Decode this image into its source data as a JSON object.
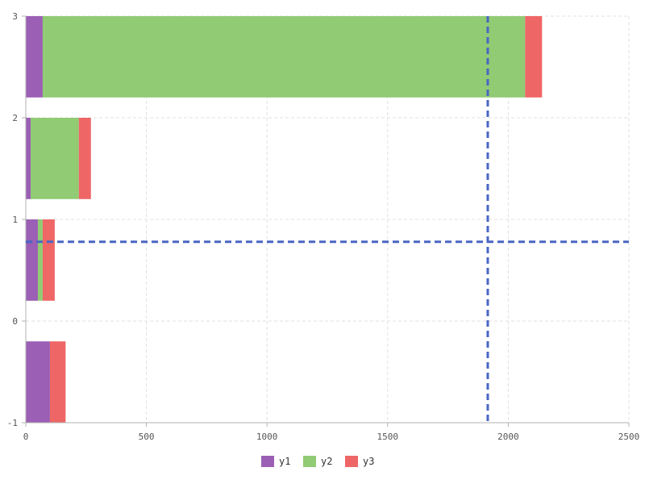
{
  "chart_data": {
    "type": "bar",
    "orientation": "horizontal",
    "stacked": true,
    "categories": [
      -0.6,
      0.6,
      1.6,
      2.6
    ],
    "series": [
      {
        "name": "y1",
        "color": "#9b5fb5",
        "values": [
          100,
          50,
          20,
          70
        ]
      },
      {
        "name": "y2",
        "color": "#91cb74",
        "values": [
          0,
          20,
          200,
          2000
        ]
      },
      {
        "name": "y3",
        "color": "#ee6666",
        "values": [
          65,
          50,
          50,
          70
        ]
      }
    ],
    "bar_height": 0.8,
    "xlim": [
      0,
      2500
    ],
    "ylim": [
      -1,
      3
    ],
    "x_ticks": [
      0,
      500,
      1000,
      1500,
      2000,
      2500
    ],
    "y_ticks": [
      -1,
      0,
      1,
      2,
      3
    ],
    "x_tick_labels": [
      "0",
      "500",
      "1000",
      "1500",
      "2000",
      "2500"
    ],
    "y_tick_labels": [
      "-1",
      "0",
      "1",
      "2",
      "3"
    ],
    "reference_lines": {
      "vertical_x": 1915,
      "horizontal_y": 0.78,
      "color": "#4a66c4",
      "style": "dashed"
    },
    "grid": true,
    "legend_position": "bottom-center",
    "title": "",
    "xlabel": "",
    "ylabel": ""
  }
}
